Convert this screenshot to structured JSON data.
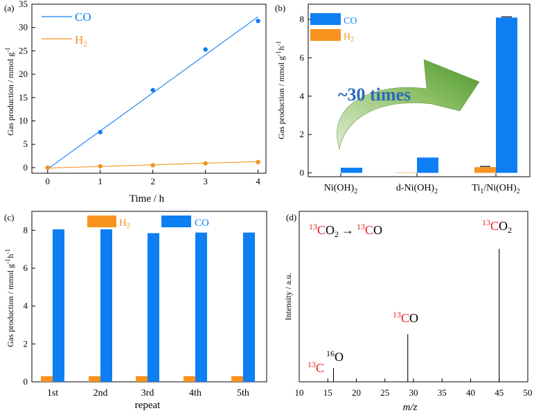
{
  "colors": {
    "co": "#0d7ff2",
    "h2": "#f7931e",
    "red": "#e8221c",
    "arrow_light": "#c9e3b5",
    "arrow_dark": "#5fa13a",
    "text_blue": "#2a6bb8"
  },
  "chart_data": [
    {
      "panel": "(a)",
      "type": "line",
      "xlabel": "Time / h",
      "ylabel": "Gas production / mmol g",
      "ylabel_sup": "-1",
      "xlim": [
        -0.3,
        4.15
      ],
      "ylim": [
        -1.2,
        35
      ],
      "xticks": [
        "0",
        "1",
        "2",
        "3",
        "4"
      ],
      "yticks": [
        "0",
        "5",
        "10",
        "15",
        "20",
        "25",
        "30",
        "35"
      ],
      "legend": [
        {
          "name": "CO"
        },
        {
          "name": "H",
          "sub": "2"
        }
      ],
      "series": [
        {
          "name": "CO",
          "x": [
            0,
            1,
            2,
            3,
            4
          ],
          "y": [
            0,
            7.6,
            16.6,
            25.3,
            31.4
          ],
          "fit": [
            [
              0,
              -0.3
            ],
            [
              4,
              32.3
            ]
          ]
        },
        {
          "name": "H2",
          "x": [
            0,
            1,
            2,
            3,
            4
          ],
          "y": [
            0,
            0.3,
            0.5,
            0.9,
            1.2
          ],
          "fit": [
            [
              0,
              -0.1
            ],
            [
              4,
              1.3
            ]
          ]
        }
      ]
    },
    {
      "panel": "(b)",
      "type": "bar",
      "ylabel": "Gas production / mmol g",
      "ylabel_sups": [
        "-1",
        "-1"
      ],
      "ylabel_mid": "h",
      "ylim": [
        -0.2,
        8.8
      ],
      "yticks": [
        "0",
        "2",
        "4",
        "6",
        "8"
      ],
      "categories": [
        {
          "main": "Ni(OH)",
          "sub": "2"
        },
        {
          "main": "d-Ni(OH)",
          "sub": "2"
        },
        {
          "pre": "Ti",
          "pre_sub": "1",
          "main": "/Ni(OH)",
          "sub": "2"
        }
      ],
      "series": [
        {
          "name": "H2",
          "values": [
            0.0,
            0.02,
            0.3
          ]
        },
        {
          "name": "CO",
          "values": [
            0.27,
            0.8,
            8.1
          ]
        }
      ],
      "legend": [
        {
          "name": "CO"
        },
        {
          "name": "H",
          "sub": "2"
        }
      ],
      "annotation": "~30 times"
    },
    {
      "panel": "(c)",
      "type": "bar",
      "xlabel": "repeat",
      "ylabel": "Gas production / mmol g",
      "ylabel_sups": [
        "-1",
        "-1"
      ],
      "ylabel_mid": "h",
      "ylim": [
        0,
        9
      ],
      "yticks": [
        "0",
        "2",
        "4",
        "6",
        "8"
      ],
      "categories": [
        "1st",
        "2nd",
        "3rd",
        "4th",
        "5th"
      ],
      "series": [
        {
          "name": "H2",
          "values": [
            0.3,
            0.3,
            0.3,
            0.3,
            0.3
          ]
        },
        {
          "name": "CO",
          "values": [
            8.05,
            8.05,
            7.85,
            7.88,
            7.88
          ]
        }
      ],
      "legend": [
        {
          "name": "H",
          "sub": "2"
        },
        {
          "name": "CO"
        }
      ]
    },
    {
      "panel": "(d)",
      "type": "bar",
      "xlabel": "m/z",
      "ylabel": "Intensity / a.u.",
      "xlim": [
        10,
        50
      ],
      "xticks": [
        "10",
        "15",
        "20",
        "25",
        "30",
        "35",
        "40",
        "45",
        "50"
      ],
      "peaks": [
        {
          "x": 16,
          "height": 0.08,
          "label": "O",
          "label_sup": "16"
        },
        {
          "x": 29,
          "height": 0.28,
          "label_red": "C",
          "label_sup": "13",
          "label_rest": "O"
        },
        {
          "x": 45,
          "height": 0.78,
          "label_red": "C",
          "label_sup": "13",
          "label_rest": "O",
          "label_sub": "2"
        }
      ],
      "c13": {
        "label_red": "C",
        "label_sup": "13"
      },
      "reaction": {
        "sup1": "13",
        "red1": "C",
        "rest1": "O",
        "sub1": "2",
        "arrow": "→",
        "sup2": "13",
        "red2": "C",
        "rest2": "O"
      }
    }
  ]
}
